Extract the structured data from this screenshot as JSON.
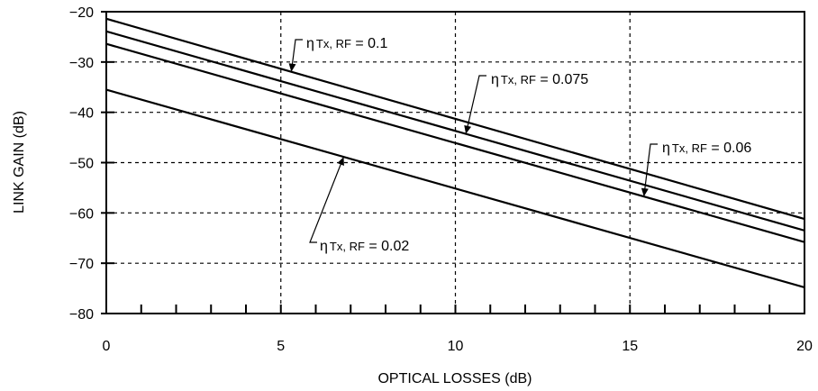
{
  "chart_data": {
    "type": "line",
    "title": "",
    "xlabel": "OPTICAL LOSSES (dB)",
    "ylabel": "LINK GAIN (dB)",
    "xlim": [
      0,
      20
    ],
    "ylim": [
      -80,
      -20
    ],
    "x_ticks": [
      0,
      5,
      10,
      15,
      20
    ],
    "y_ticks": [
      -20,
      -30,
      -40,
      -50,
      -60,
      -70,
      -80
    ],
    "x_tick_labels": [
      "0",
      "5",
      "10",
      "15",
      "20"
    ],
    "y_tick_labels": [
      "−20",
      "−30",
      "−40",
      "−50",
      "−60",
      "−70",
      "−80"
    ],
    "grid": true,
    "series": [
      {
        "values_x": [
          0,
          20
        ],
        "values_y": [
          -21.4,
          -61.2
        ]
      },
      {
        "values_x": [
          0,
          20
        ],
        "values_y": [
          -23.9,
          -63.5
        ]
      },
      {
        "values_x": [
          0,
          20
        ],
        "values_y": [
          -26.4,
          -65.8
        ]
      },
      {
        "values_x": [
          0,
          20
        ],
        "values_y": [
          -35.5,
          -74.8
        ]
      }
    ],
    "annotations": [
      {
        "symbol": "η",
        "sub": "Tx, RF",
        "text": " = 0.1",
        "series_index": 0,
        "target_x": 5.3
      },
      {
        "symbol": "η",
        "sub": "Tx, RF",
        "text": " = 0.075",
        "series_index": 1,
        "target_x": 10.3
      },
      {
        "symbol": "η",
        "sub": "Tx, RF",
        "text": " = 0.06",
        "series_index": 2,
        "target_x": 15.4
      },
      {
        "symbol": "η",
        "sub": "Tx, RF",
        "text": " = 0.02",
        "series_index": 3,
        "target_x": 6.8
      }
    ]
  }
}
